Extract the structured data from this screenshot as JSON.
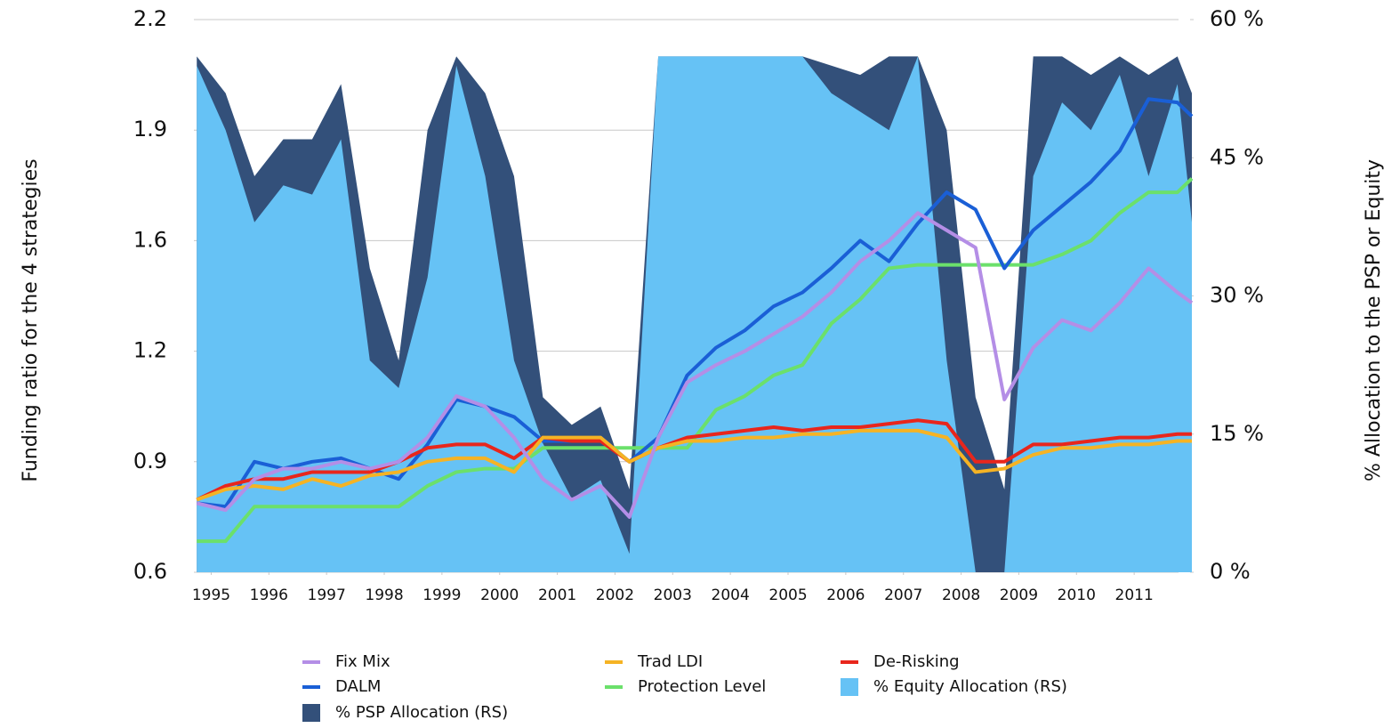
{
  "chart_data": {
    "type": "line",
    "y_label": "Funding ratio for the 4 strategies",
    "y2_label": "% Allocation to the PSP or Equity",
    "xlim": [
      1994.7,
      2012.0
    ],
    "xticks": [
      1995,
      1996,
      1997,
      1998,
      1999,
      2000,
      2001,
      2002,
      2003,
      2004,
      2005,
      2006,
      2007,
      2008,
      2009,
      2010,
      2011
    ],
    "ylim": [
      0.6,
      2.2
    ],
    "yticks": [
      0.6,
      {
        "value": 0.92,
        "label": "0.9"
      },
      {
        "value": 1.24,
        "label": "1.2"
      },
      {
        "value": 1.56,
        "label": "1.6"
      },
      {
        "value": 1.88,
        "label": "1.9"
      },
      2.2
    ],
    "y2lim": [
      0,
      60
    ],
    "y2ticks": [
      {
        "value": 0,
        "label": "0 %"
      },
      {
        "value": 15,
        "label": "15 %"
      },
      {
        "value": 30,
        "label": "30 %"
      },
      {
        "value": 45,
        "label": "45 %"
      },
      {
        "value": 60,
        "label": "60 %"
      }
    ],
    "grid": true,
    "legend": "bottom",
    "x": [
      1994.75,
      1995.25,
      1995.75,
      1996.25,
      1996.75,
      1997.25,
      1997.75,
      1998.25,
      1998.75,
      1999.25,
      1999.75,
      2000.25,
      2000.75,
      2001.25,
      2001.75,
      2002.25,
      2002.75,
      2003.25,
      2003.75,
      2004.25,
      2004.75,
      2005.25,
      2005.75,
      2006.25,
      2006.75,
      2007.25,
      2007.75,
      2008.25,
      2008.75,
      2009.25,
      2009.75,
      2010.25,
      2010.75,
      2011.25,
      2011.75,
      2012.0
    ],
    "series": [
      {
        "name": "Fix Mix",
        "type": "line",
        "color": "#b48ee6",
        "values": [
          0.8,
          0.78,
          0.87,
          0.9,
          0.9,
          0.92,
          0.9,
          0.92,
          0.99,
          1.11,
          1.08,
          0.99,
          0.87,
          0.81,
          0.85,
          0.76,
          0.99,
          1.15,
          1.2,
          1.24,
          1.29,
          1.34,
          1.41,
          1.5,
          1.56,
          1.64,
          1.59,
          1.54,
          1.1,
          1.25,
          1.33,
          1.3,
          1.38,
          1.48,
          1.41,
          1.38
        ]
      },
      {
        "name": "Trad LDI",
        "type": "line",
        "color": "#f5b324",
        "values": [
          0.81,
          0.84,
          0.85,
          0.84,
          0.87,
          0.85,
          0.88,
          0.89,
          0.92,
          0.93,
          0.93,
          0.89,
          0.99,
          0.99,
          0.99,
          0.92,
          0.96,
          0.98,
          0.98,
          0.99,
          0.99,
          1.0,
          1.0,
          1.01,
          1.01,
          1.01,
          0.99,
          0.89,
          0.9,
          0.94,
          0.96,
          0.96,
          0.97,
          0.97,
          0.98,
          0.98
        ]
      },
      {
        "name": "De-Risking",
        "type": "line",
        "color": "#e8261c",
        "values": [
          0.81,
          0.85,
          0.87,
          0.87,
          0.89,
          0.89,
          0.89,
          0.92,
          0.96,
          0.97,
          0.97,
          0.93,
          0.99,
          0.98,
          0.98,
          0.92,
          0.96,
          0.99,
          1.0,
          1.01,
          1.02,
          1.01,
          1.02,
          1.02,
          1.03,
          1.04,
          1.03,
          0.92,
          0.92,
          0.97,
          0.97,
          0.98,
          0.99,
          0.99,
          1.0,
          1.0
        ]
      },
      {
        "name": "DALM",
        "type": "line",
        "color": "#1a5fd6",
        "values": [
          0.8,
          0.79,
          0.92,
          0.9,
          0.92,
          0.93,
          0.9,
          0.87,
          0.97,
          1.1,
          1.08,
          1.05,
          0.98,
          0.98,
          0.99,
          0.92,
          0.99,
          1.17,
          1.25,
          1.3,
          1.37,
          1.41,
          1.48,
          1.56,
          1.5,
          1.61,
          1.7,
          1.65,
          1.48,
          1.59,
          1.66,
          1.73,
          1.82,
          1.97,
          1.96,
          1.92
        ]
      },
      {
        "name": "Protection Level",
        "type": "line",
        "color": "#6be06b",
        "values": [
          0.69,
          0.69,
          0.79,
          0.79,
          0.79,
          0.79,
          0.79,
          0.79,
          0.85,
          0.89,
          0.9,
          0.9,
          0.96,
          0.96,
          0.96,
          0.96,
          0.96,
          0.96,
          1.07,
          1.11,
          1.17,
          1.2,
          1.32,
          1.39,
          1.48,
          1.49,
          1.49,
          1.49,
          1.49,
          1.49,
          1.52,
          1.56,
          1.64,
          1.7,
          1.7,
          1.74
        ]
      },
      {
        "name": "% Equity Allocation (RS)",
        "type": "area",
        "axis": "y2",
        "color": "#66c2f5",
        "values": [
          55,
          48,
          38,
          42,
          41,
          47,
          23,
          20,
          32,
          55,
          43,
          23,
          14,
          8,
          10,
          2,
          56,
          56,
          56,
          56,
          56,
          56,
          52,
          50,
          48,
          56,
          23,
          0,
          0,
          43,
          51,
          48,
          54,
          43,
          53,
          38
        ]
      },
      {
        "name": "% PSP Allocation (RS)",
        "type": "area",
        "axis": "y2",
        "color": "#33507a",
        "values": [
          56,
          52,
          43,
          47,
          47,
          53,
          33,
          23,
          48,
          56,
          52,
          43,
          19,
          16,
          18,
          9,
          56,
          56,
          56,
          56,
          56,
          56,
          55,
          54,
          56,
          56,
          48,
          19,
          9,
          56,
          56,
          54,
          56,
          54,
          56,
          52
        ]
      }
    ]
  }
}
